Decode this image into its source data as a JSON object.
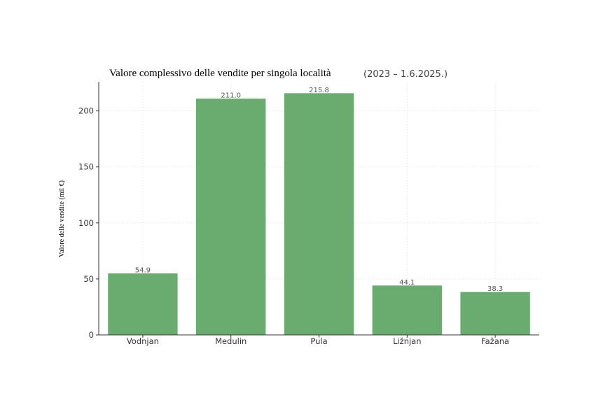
{
  "chart_data": {
    "type": "bar",
    "title": "Valore complessivo delle vendite per singola località",
    "subtitle": "(2023 – 1.6.2025.)",
    "xlabel": "",
    "ylabel": "Valore delle vendite (mil €)",
    "categories": [
      "Vodnjan",
      "Medulin",
      "Pula",
      "Ližnjan",
      "Fažana"
    ],
    "values": [
      54.9,
      211.0,
      215.8,
      44.1,
      38.3
    ],
    "value_labels": [
      "54.9",
      "211.0",
      "215.8",
      "44.1",
      "38.3"
    ],
    "ylim": [
      0,
      226
    ],
    "yticks": [
      0,
      50,
      100,
      150,
      200
    ],
    "grid": true,
    "bar_color": "#6aac6f"
  }
}
